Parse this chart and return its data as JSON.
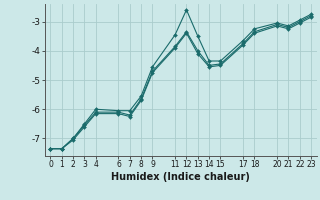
{
  "xlabel": "Humidex (Indice chaleur)",
  "ylabel": "",
  "background_color": "#cce8e8",
  "grid_color": "#aacccc",
  "line_color": "#1a6b6b",
  "marker": "D",
  "marker_size": 2.0,
  "line_width": 0.8,
  "xlim": [
    -0.5,
    23.5
  ],
  "ylim": [
    -7.6,
    -2.4
  ],
  "xticks": [
    0,
    1,
    2,
    3,
    4,
    6,
    7,
    8,
    9,
    11,
    12,
    13,
    14,
    15,
    17,
    18,
    20,
    21,
    22,
    23
  ],
  "yticks": [
    -7,
    -6,
    -5,
    -4,
    -3
  ],
  "series": [
    {
      "x": [
        0,
        1,
        2,
        3,
        4,
        6,
        7,
        8,
        9,
        11,
        12,
        13,
        14,
        15,
        17,
        18,
        20,
        21,
        22,
        23
      ],
      "y": [
        -7.35,
        -7.35,
        -7.0,
        -6.5,
        -6.0,
        -6.05,
        -6.05,
        -5.55,
        -4.55,
        -3.45,
        -2.6,
        -3.5,
        -4.35,
        -4.35,
        -3.65,
        -3.25,
        -3.05,
        -3.15,
        -2.95,
        -2.75
      ]
    },
    {
      "x": [
        0,
        1,
        2,
        3,
        4,
        6,
        7,
        8,
        9,
        11,
        12,
        13,
        14,
        15,
        17,
        18,
        20,
        21,
        22,
        23
      ],
      "y": [
        -7.35,
        -7.35,
        -7.0,
        -6.55,
        -6.1,
        -6.1,
        -6.2,
        -5.65,
        -4.7,
        -3.85,
        -3.35,
        -4.0,
        -4.5,
        -4.45,
        -3.75,
        -3.35,
        -3.1,
        -3.2,
        -3.0,
        -2.8
      ]
    },
    {
      "x": [
        0,
        1,
        2,
        3,
        4,
        6,
        7,
        8,
        9,
        11,
        12,
        13,
        14,
        15,
        17,
        18,
        20,
        21,
        22,
        23
      ],
      "y": [
        -7.35,
        -7.35,
        -7.05,
        -6.6,
        -6.15,
        -6.15,
        -6.25,
        -5.7,
        -4.75,
        -3.9,
        -3.4,
        -4.1,
        -4.55,
        -4.5,
        -3.8,
        -3.4,
        -3.15,
        -3.25,
        -3.05,
        -2.85
      ]
    }
  ]
}
